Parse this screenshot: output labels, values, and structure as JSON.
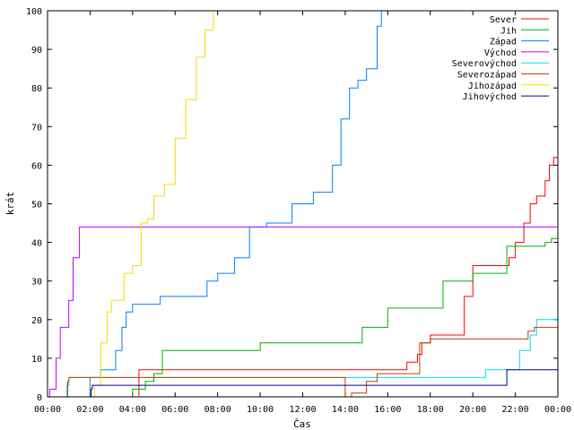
{
  "chart_data": {
    "type": "line",
    "xlabel": "Čas",
    "ylabel": "krát",
    "xlim": [
      0,
      24
    ],
    "ylim": [
      0,
      100
    ],
    "xticks": [
      {
        "value": 0,
        "label": "00:00"
      },
      {
        "value": 2,
        "label": "02:00"
      },
      {
        "value": 4,
        "label": "04:00"
      },
      {
        "value": 6,
        "label": "06:00"
      },
      {
        "value": 8,
        "label": "08:00"
      },
      {
        "value": 10,
        "label": "10:00"
      },
      {
        "value": 12,
        "label": "12:00"
      },
      {
        "value": 14,
        "label": "14:00"
      },
      {
        "value": 16,
        "label": "16:00"
      },
      {
        "value": 18,
        "label": "18:00"
      },
      {
        "value": 20,
        "label": "20:00"
      },
      {
        "value": 22,
        "label": "22:00"
      },
      {
        "value": 24,
        "label": "00:00"
      }
    ],
    "yticks": [
      0,
      10,
      20,
      30,
      40,
      50,
      60,
      70,
      80,
      90,
      100
    ],
    "grid": false,
    "legend_position": "top-right",
    "series": [
      {
        "name": "Sever",
        "color": "#ff0000",
        "x": [
          0,
          4.3,
          4.3,
          13.9,
          14.5,
          16.5,
          16.9,
          17.4,
          17.6,
          18.0,
          19.2,
          19.6,
          20.0,
          21.1,
          21.7,
          22.0,
          22.4,
          22.7,
          23.0,
          23.4,
          23.6,
          23.8,
          24.0
        ],
        "y": [
          0,
          0,
          7,
          7,
          7,
          7,
          9,
          11,
          14,
          16,
          16,
          26,
          34,
          34,
          36,
          40,
          45,
          50,
          52,
          56,
          60,
          62,
          67
        ]
      },
      {
        "name": "Jih",
        "color": "#00b000",
        "x": [
          0,
          4.0,
          4.0,
          4.6,
          5.0,
          5.4,
          9.9,
          10.0,
          14.5,
          14.8,
          16.0,
          18.2,
          18.6,
          19.2,
          20.0,
          21.1,
          21.6,
          23.4,
          23.7,
          24.0
        ],
        "y": [
          0,
          0,
          2,
          4,
          6,
          12,
          12,
          14,
          14,
          18,
          23,
          23,
          30,
          30,
          32,
          32,
          39,
          40,
          41,
          41
        ]
      },
      {
        "name": "Západ",
        "color": "#0080ff",
        "x": [
          0,
          2.0,
          2.0,
          2.5,
          2.9,
          3.2,
          3.5,
          3.7,
          4.0,
          5.0,
          5.3,
          7.0,
          7.5,
          8.0,
          8.8,
          9.5,
          10.3,
          11.5,
          12.5,
          13.4,
          13.8,
          14.2,
          14.6,
          15.0,
          15.5,
          15.7
        ],
        "y": [
          0,
          0,
          5,
          7,
          7,
          12,
          18,
          22,
          24,
          24,
          26,
          26,
          30,
          32,
          36,
          44,
          45,
          50,
          53,
          60,
          72,
          80,
          82,
          85,
          96,
          100
        ]
      },
      {
        "name": "Východ",
        "color": "#c000ff",
        "x": [
          0,
          0.1,
          0.4,
          0.6,
          0.8,
          1.0,
          1.2,
          1.5,
          1.8,
          24.0
        ],
        "y": [
          0,
          2,
          10,
          18,
          18,
          25,
          36,
          44,
          44,
          44
        ]
      },
      {
        "name": "Severovýchod",
        "color": "#00e0e0",
        "x": [
          0,
          0.8,
          0.9,
          1.0,
          3.0,
          20.0,
          20.4,
          20.6,
          21.9,
          22.2,
          22.7,
          23.0,
          24.0
        ],
        "y": [
          0,
          0,
          3,
          5,
          5,
          5,
          5,
          7,
          7,
          12,
          16,
          20,
          20
        ]
      },
      {
        "name": "Severozápad",
        "color": "#c04000",
        "x": [
          0,
          0.85,
          0.95,
          1.0,
          1.2,
          14.0,
          14.3,
          15.0,
          15.5,
          17.0,
          17.5,
          18.0,
          21.8,
          22.6,
          22.9,
          24.0
        ],
        "y": [
          0,
          0,
          4,
          5,
          5,
          0,
          1,
          4,
          6,
          6,
          14,
          15,
          15,
          17,
          18,
          18
        ]
      },
      {
        "name": "Jihozápad",
        "color": "#ffd700",
        "x": [
          0,
          2.1,
          2.2,
          2.5,
          2.8,
          3.0,
          3.2,
          3.6,
          4.0,
          4.4,
          4.7,
          5.0,
          5.5,
          6.0,
          6.5,
          7.0,
          7.4,
          7.8,
          8.0
        ],
        "y": [
          0,
          0,
          3,
          14,
          22,
          25,
          25,
          32,
          34,
          45,
          46,
          52,
          55,
          67,
          77,
          88,
          95,
          100,
          100
        ]
      },
      {
        "name": "Jihovýchod",
        "color": "#00008b",
        "x": [
          0,
          1.95,
          2.05,
          2.1,
          21.5,
          21.6,
          24.0
        ],
        "y": [
          0,
          0,
          2,
          3,
          3,
          7,
          7
        ]
      }
    ]
  }
}
